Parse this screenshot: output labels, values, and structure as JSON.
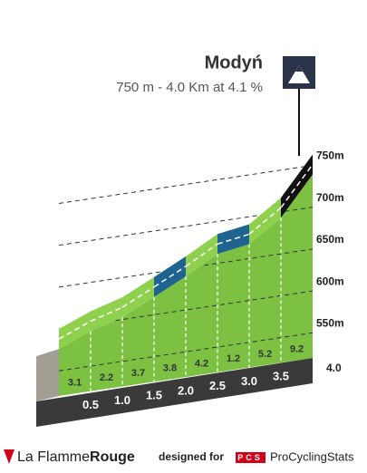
{
  "chart_data": {
    "type": "area",
    "title": "Modyń",
    "subtitle": "750 m - 4.0 Km at 4.1 %",
    "x": [
      0,
      0.5,
      1,
      1.5,
      2,
      2.5,
      3,
      3.5,
      4
    ],
    "values": [
      587,
      602.5,
      613.5,
      632,
      651,
      672,
      678,
      704,
      750
    ],
    "color": "#7dc142",
    "segment_gradients": [
      3.1,
      2.2,
      3.7,
      3.8,
      4.2,
      1.2,
      5.2,
      9.2
    ],
    "segment_colors": [
      "#8fd14f",
      "#8fd14f",
      "#8fd14f",
      "#1f6391",
      "#8fd14f",
      "#1f6391",
      "#8fd14f",
      "#111111"
    ],
    "xlim": [
      0,
      4
    ],
    "xticks": [
      0.5,
      {
        "value": 1,
        "label": "1.0"
      },
      1.5,
      {
        "value": 2,
        "label": "2.0"
      },
      2.5,
      {
        "value": 3,
        "label": "3.0"
      },
      3.5,
      {
        "value": 4,
        "label": "4.0"
      }
    ],
    "ylim": [
      520,
      770
    ],
    "yticks": [
      {
        "value": 550,
        "label": "550m"
      },
      {
        "value": 600,
        "label": "600m"
      },
      {
        "value": 650,
        "label": "650m"
      },
      {
        "value": 700,
        "label": "700m"
      },
      {
        "value": 750,
        "label": "750m"
      }
    ],
    "grid": true
  },
  "footer": {
    "brand_a": "La Flamme",
    "brand_b": "Rouge",
    "designed": "designed for",
    "pcs": "PCS",
    "site": "ProCyclingStats"
  }
}
